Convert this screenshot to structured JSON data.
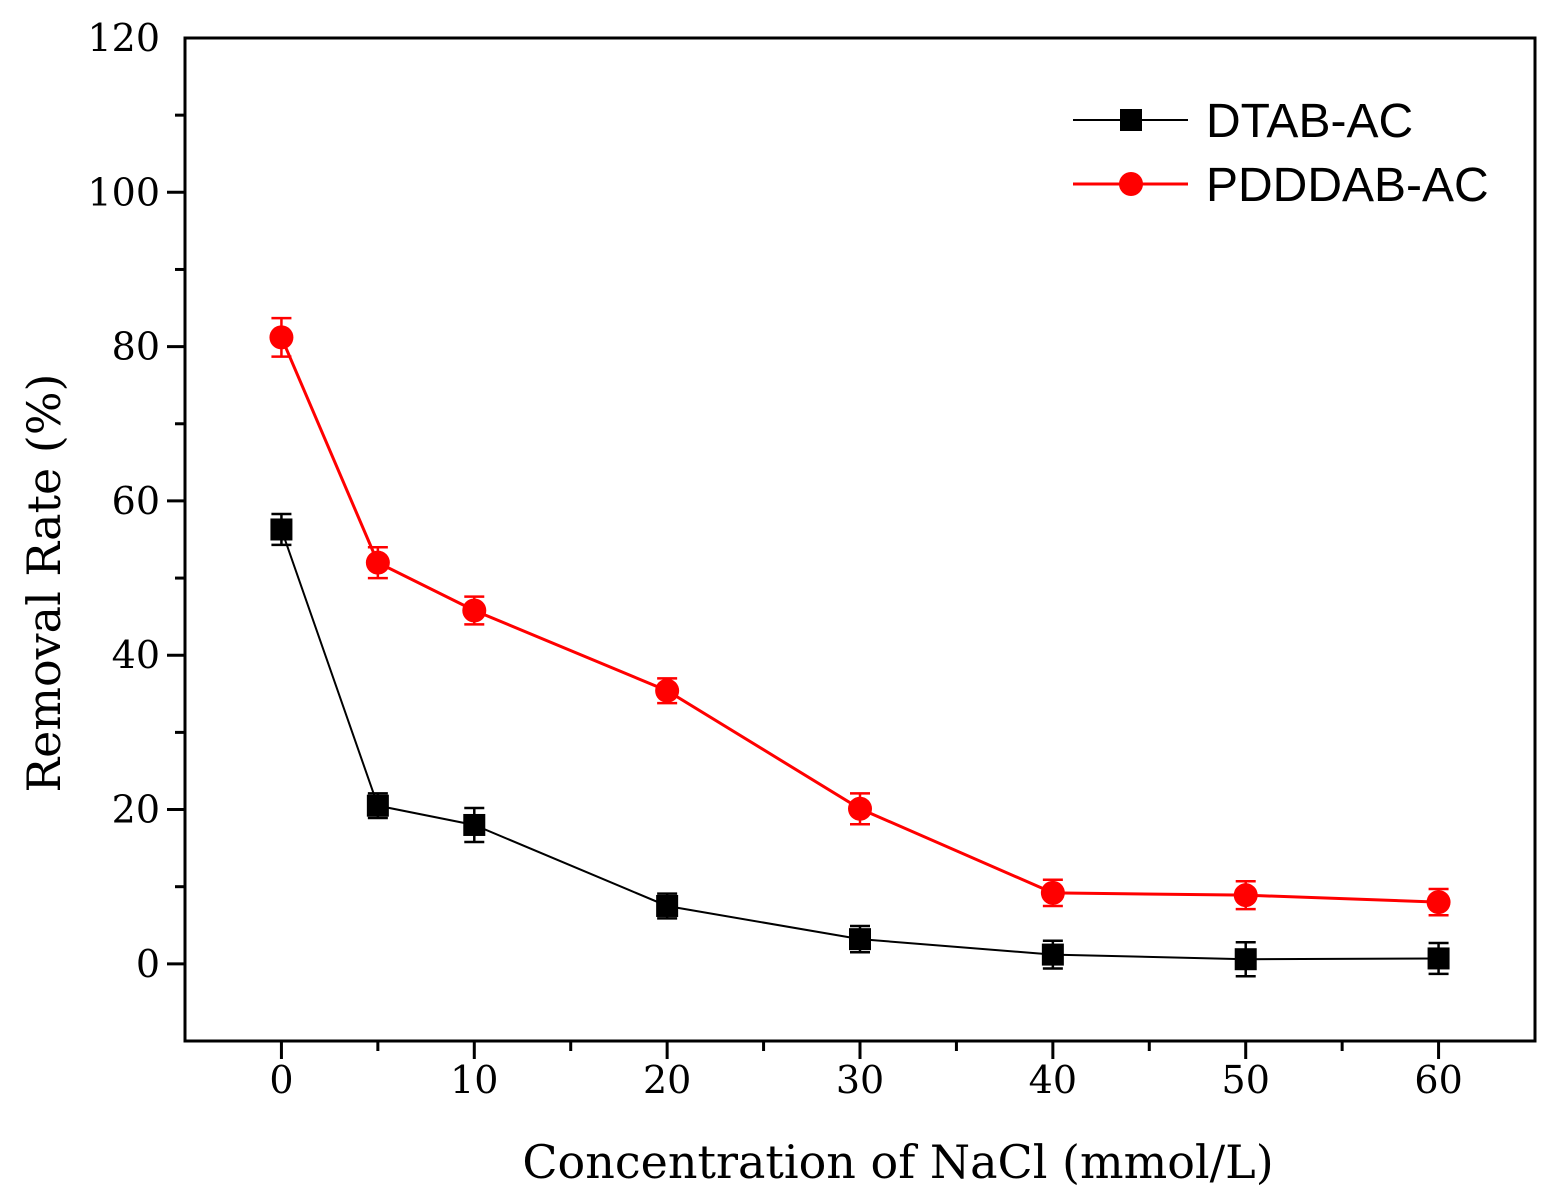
{
  "chart_data": {
    "type": "line",
    "title": "",
    "xlabel": "Concentration of NaCl (mmol/L)",
    "ylabel": "Removal Rate (%)",
    "xlim": [
      -5,
      65
    ],
    "ylim": [
      -10,
      120
    ],
    "xticks": [
      0,
      10,
      20,
      30,
      40,
      50,
      60
    ],
    "xtick_labels": [
      "0",
      "10",
      "20",
      "30",
      "40",
      "50",
      "60"
    ],
    "yticks": [
      0,
      20,
      40,
      60,
      80,
      100,
      120
    ],
    "ytick_labels": [
      "0",
      "20",
      "40",
      "60",
      "80",
      "100",
      "120"
    ],
    "x_minor_step": 5,
    "y_minor_step": 10,
    "grid": false,
    "legend_position": "top-right",
    "x": [
      0,
      5,
      10,
      20,
      30,
      40,
      50,
      60
    ],
    "series": [
      {
        "name": "DTAB-AC",
        "color": "#000000",
        "marker": "square",
        "values": [
          56.3,
          20.5,
          18.0,
          7.5,
          3.2,
          1.2,
          0.6,
          0.7
        ],
        "errors": [
          2.0,
          1.6,
          2.2,
          1.6,
          1.7,
          1.8,
          2.2,
          2.0
        ]
      },
      {
        "name": "PDDDAB-AC",
        "color": "#ff0000",
        "marker": "circle",
        "values": [
          81.2,
          52.0,
          45.8,
          35.4,
          20.1,
          9.2,
          8.9,
          8.0
        ],
        "errors": [
          2.5,
          2.0,
          1.8,
          1.6,
          2.0,
          1.7,
          1.8,
          1.7
        ]
      }
    ]
  }
}
